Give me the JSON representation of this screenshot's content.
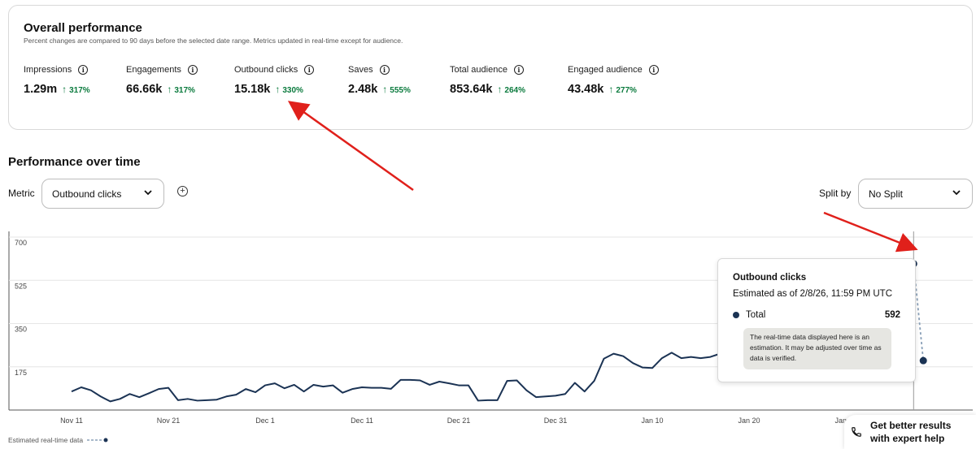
{
  "overview": {
    "title": "Overall performance",
    "subtitle": "Percent changes are compared to 90 days before the selected date range. Metrics updated in real-time except for audience.",
    "metrics": [
      {
        "name": "Impressions",
        "value": "1.29m",
        "change": "317%"
      },
      {
        "name": "Engagements",
        "value": "66.66k",
        "change": "317%"
      },
      {
        "name": "Outbound clicks",
        "value": "15.18k",
        "change": "330%"
      },
      {
        "name": "Saves",
        "value": "2.48k",
        "change": "555%"
      },
      {
        "name": "Total audience",
        "value": "853.64k",
        "change": "264%"
      },
      {
        "name": "Engaged audience",
        "value": "43.48k",
        "change": "277%"
      }
    ]
  },
  "performance": {
    "title": "Performance over time",
    "metric_label": "Metric",
    "metric_value": "Outbound clicks",
    "split_label": "Split by",
    "split_value": "No Split"
  },
  "tooltip": {
    "title": "Outbound clicks",
    "subtitle": "Estimated as of 2/8/26, 11:59 PM UTC",
    "series": "Total",
    "value": "592",
    "note": "The real-time data displayed here is an estimation. It may be adjusted over time as data is verified."
  },
  "legend": {
    "estimated_label": "Estimated real-time data"
  },
  "help_button": {
    "label": "Get better results with expert help"
  },
  "colors": {
    "line": "#1b3354",
    "estimated": "#8aa0b8",
    "positive": "#0a7a3d",
    "annotation": "#e0201b"
  },
  "chart_data": {
    "type": "line",
    "y_ticks": [
      175,
      350,
      525,
      700
    ],
    "ylim": [
      0,
      700
    ],
    "x_tick_labels": [
      "Nov 11",
      "Nov 21",
      "Dec 1",
      "Dec 11",
      "Dec 21",
      "Dec 31",
      "Jan 10",
      "Jan 20",
      "Jan 30"
    ],
    "x_start": "2025-11-11",
    "series": [
      {
        "values": [
          75,
          92,
          80,
          55,
          35,
          45,
          65,
          52,
          68,
          85,
          90,
          40,
          45,
          38,
          40,
          42,
          55,
          62,
          85,
          72,
          100,
          108,
          88,
          102,
          75,
          102,
          95,
          100,
          70,
          85,
          92,
          90,
          90,
          86,
          122,
          122,
          120,
          102,
          115,
          108,
          100,
          100,
          38,
          40,
          40,
          118,
          120,
          80,
          52,
          55,
          58,
          65,
          110,
          75,
          118,
          208,
          228,
          218,
          190,
          172,
          170,
          210,
          232,
          210,
          215,
          210,
          215,
          228,
          215,
          208,
          215,
          230,
          220,
          220,
          232,
          240,
          280,
          300,
          308,
          338,
          360,
          390,
          410,
          440,
          452,
          458,
          462
        ],
        "estimated_values": [
          462,
          592,
          200
        ]
      }
    ]
  }
}
